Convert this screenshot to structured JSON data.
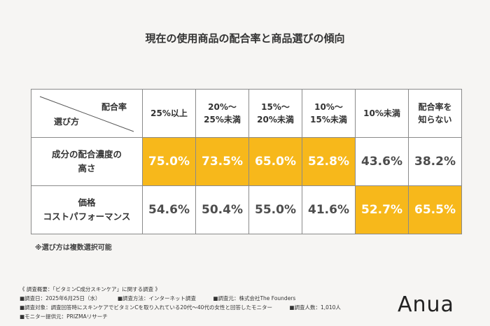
{
  "title": "現在の使用商品の配合率と商品選びの傾向",
  "table": {
    "corner_top": "配合率",
    "corner_bottom": "選び方",
    "headers": [
      [
        "25%以上"
      ],
      [
        "20%～",
        "25%未満"
      ],
      [
        "15%～",
        "20%未満"
      ],
      [
        "10%～",
        "15%未満"
      ],
      [
        "10%未満"
      ],
      [
        "配合率を",
        "知らない"
      ]
    ],
    "rows": [
      {
        "label": [
          "成分の配合濃度の",
          "高さ"
        ],
        "values": [
          "75.0%",
          "73.5%",
          "65.0%",
          "52.8%",
          "43.6%",
          "38.2%"
        ],
        "highlight": [
          true,
          true,
          true,
          true,
          false,
          false
        ]
      },
      {
        "label": [
          "価格",
          "コストパフォーマンス"
        ],
        "values": [
          "54.6%",
          "50.4%",
          "55.0%",
          "41.6%",
          "52.7%",
          "65.5%"
        ],
        "highlight": [
          false,
          false,
          false,
          false,
          true,
          true
        ]
      }
    ]
  },
  "note": "※選び方は複数選択可能",
  "survey": {
    "heading": "《 調査概要：「ビタミンC成分スキンケア」に関する調査 》",
    "date": "■調査日：2025年6月25日（水）",
    "method": "■調査方法：インターネット調査",
    "org": "■調査元：株式会社The Founders",
    "target": "■調査対象：調査回答時にスキンケアでビタミンCを取り入れている20代〜40代の女性と回答したモニター",
    "count": "■調査人数：1,010人",
    "provider": "■モニター提供元：PRIZMAリサーチ"
  },
  "brand": "Anua",
  "colors": {
    "highlight": "#f7b81b",
    "background": "#f6f5f3",
    "border": "#8a8a8a"
  }
}
